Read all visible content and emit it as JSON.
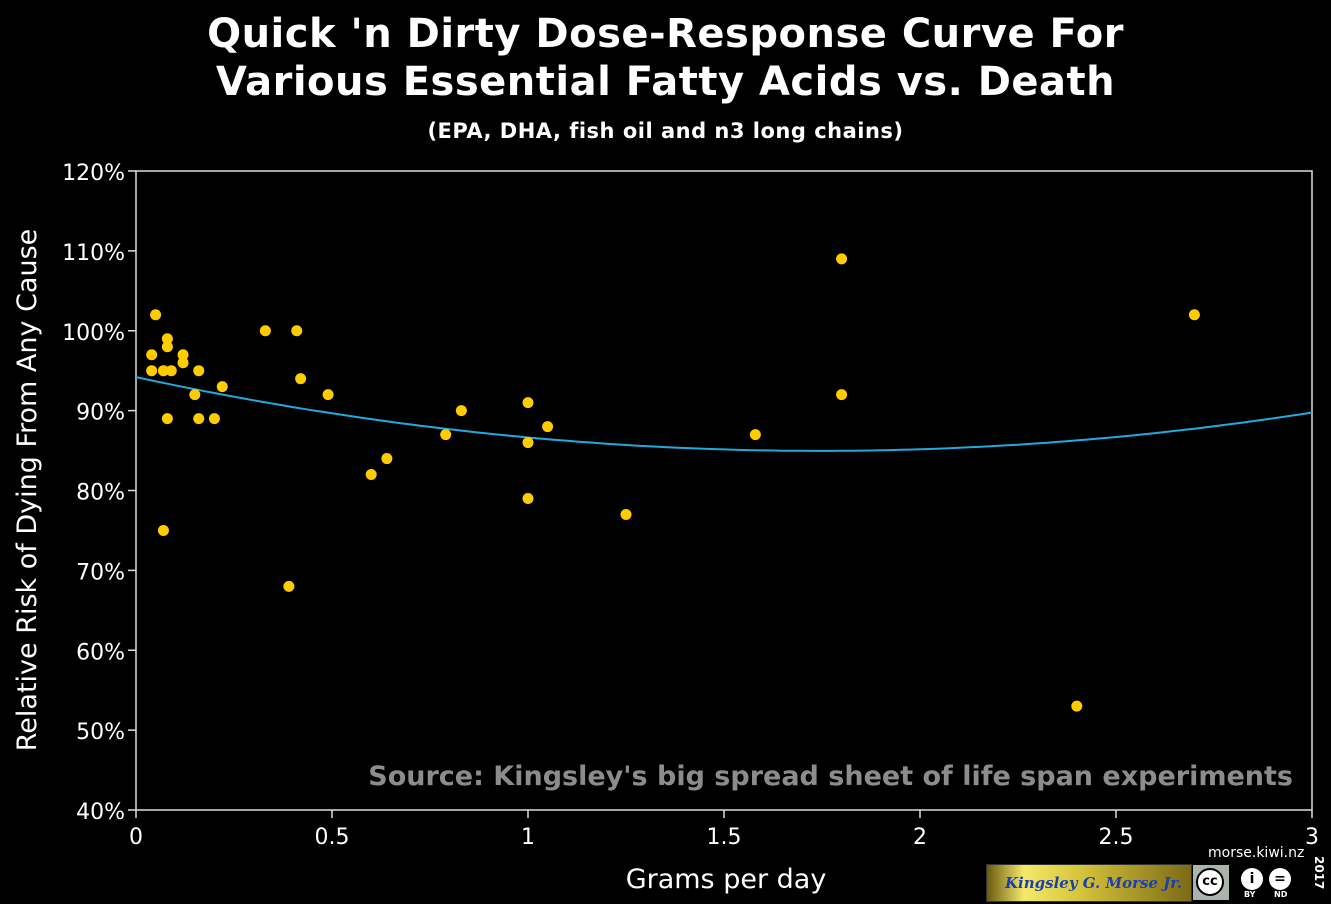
{
  "chart_data": {
    "type": "scatter",
    "title_line1": "Quick 'n Dirty Dose-Response Curve For",
    "title_line2": "Various Essential Fatty Acids vs. Death",
    "subtitle": "(EPA, DHA, fish oil and n3 long chains)",
    "xlabel": "Grams per day",
    "ylabel": "Relative Risk of Dying From Any Cause",
    "xlim": [
      0,
      3
    ],
    "ylim": [
      40,
      120
    ],
    "x_ticks": [
      0,
      0.5,
      1,
      1.5,
      2,
      2.5,
      3
    ],
    "x_tick_labels": [
      "0",
      "0.5",
      "1",
      "1.5",
      "2",
      "2.5",
      "3"
    ],
    "y_ticks": [
      40,
      50,
      60,
      70,
      80,
      90,
      100,
      110,
      120
    ],
    "y_tick_labels": [
      "40%",
      "50%",
      "60%",
      "70%",
      "80%",
      "90%",
      "100%",
      "110%",
      "120%"
    ],
    "annotation": "Source: Kingsley's big spread sheet of life span experiments",
    "point_color": "#ffcc00",
    "curve_color": "#22aadd",
    "points": [
      {
        "x": 0.04,
        "y": 97
      },
      {
        "x": 0.04,
        "y": 95
      },
      {
        "x": 0.05,
        "y": 102
      },
      {
        "x": 0.07,
        "y": 95
      },
      {
        "x": 0.07,
        "y": 75
      },
      {
        "x": 0.08,
        "y": 99
      },
      {
        "x": 0.08,
        "y": 98
      },
      {
        "x": 0.08,
        "y": 89
      },
      {
        "x": 0.09,
        "y": 95
      },
      {
        "x": 0.12,
        "y": 97
      },
      {
        "x": 0.12,
        "y": 96
      },
      {
        "x": 0.15,
        "y": 92
      },
      {
        "x": 0.16,
        "y": 95
      },
      {
        "x": 0.16,
        "y": 89
      },
      {
        "x": 0.2,
        "y": 89
      },
      {
        "x": 0.22,
        "y": 93
      },
      {
        "x": 0.33,
        "y": 100
      },
      {
        "x": 0.39,
        "y": 68
      },
      {
        "x": 0.41,
        "y": 100
      },
      {
        "x": 0.42,
        "y": 94
      },
      {
        "x": 0.49,
        "y": 92
      },
      {
        "x": 0.6,
        "y": 82
      },
      {
        "x": 0.64,
        "y": 84
      },
      {
        "x": 0.79,
        "y": 87
      },
      {
        "x": 0.83,
        "y": 90
      },
      {
        "x": 1.0,
        "y": 91
      },
      {
        "x": 1.0,
        "y": 86
      },
      {
        "x": 1.0,
        "y": 79
      },
      {
        "x": 1.05,
        "y": 88
      },
      {
        "x": 1.25,
        "y": 77
      },
      {
        "x": 1.58,
        "y": 87
      },
      {
        "x": 1.8,
        "y": 109
      },
      {
        "x": 1.8,
        "y": 92
      },
      {
        "x": 2.4,
        "y": 53
      },
      {
        "x": 2.7,
        "y": 102
      }
    ],
    "fit_curve": {
      "form": "quadratic",
      "description": "y = a + b*x + c*x^2",
      "a": 94.2,
      "b": -10.6,
      "c": 3.04
    }
  },
  "footer": {
    "badge_text": "Kingsley G. Morse Jr.",
    "site": "morse.kiwi.nz",
    "year": "2017",
    "cc_mark": "cc",
    "cc_by": "BY",
    "cc_nd": "ND",
    "by_glyph": "i",
    "nd_glyph": "="
  }
}
